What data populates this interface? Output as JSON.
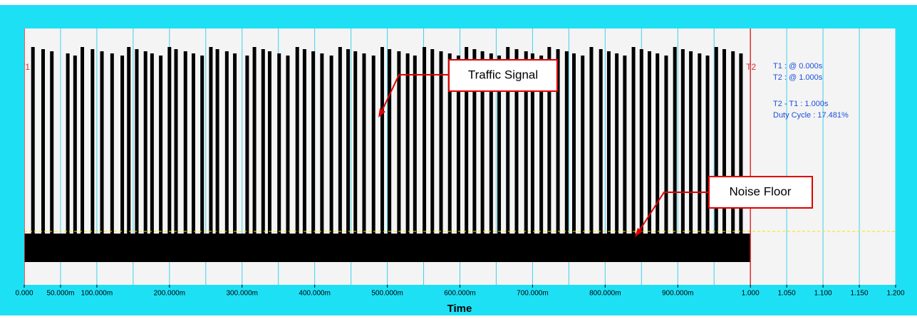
{
  "plot": {
    "xlim": [
      0,
      1.2
    ],
    "gridlines": [
      0,
      0.05,
      0.1,
      0.15,
      0.2,
      0.25,
      0.3,
      0.35,
      0.4,
      0.45,
      0.5,
      0.55,
      0.6,
      0.65,
      0.7,
      0.75,
      0.8,
      0.85,
      0.9,
      0.95,
      1.0,
      1.05,
      1.1,
      1.15,
      1.2
    ],
    "xticks": [
      {
        "value": 0,
        "label": "0.000"
      },
      {
        "value": 0.05,
        "label": "50.000m"
      },
      {
        "value": 0.1,
        "label": "100.000m"
      },
      {
        "value": 0.2,
        "label": "200.000m"
      },
      {
        "value": 0.3,
        "label": "300.000m"
      },
      {
        "value": 0.4,
        "label": "400.000m"
      },
      {
        "value": 0.5,
        "label": "500.000m"
      },
      {
        "value": 0.6,
        "label": "600.000m"
      },
      {
        "value": 0.7,
        "label": "700.000m"
      },
      {
        "value": 0.8,
        "label": "800.000m"
      },
      {
        "value": 0.9,
        "label": "900.000m"
      },
      {
        "value": 1.0,
        "label": "1.000"
      },
      {
        "value": 1.05,
        "label": "1.050"
      },
      {
        "value": 1.1,
        "label": "1.100"
      },
      {
        "value": 1.15,
        "label": "1.150"
      },
      {
        "value": 1.2,
        "label": "1.200"
      }
    ],
    "xlabel": "Time",
    "cursors": [
      {
        "label": "T1",
        "value": 0
      },
      {
        "label": "T2",
        "value": 1.0
      }
    ],
    "pulse_times": [
      0.012,
      0.026,
      0.038,
      0.06,
      0.07,
      0.08,
      0.094,
      0.107,
      0.121,
      0.135,
      0.144,
      0.155,
      0.167,
      0.176,
      0.188,
      0.2,
      0.209,
      0.222,
      0.233,
      0.245,
      0.257,
      0.266,
      0.279,
      0.29,
      0.307,
      0.317,
      0.329,
      0.338,
      0.351,
      0.363,
      0.376,
      0.386,
      0.398,
      0.41,
      0.423,
      0.435,
      0.446,
      0.456,
      0.468,
      0.481,
      0.493,
      0.503,
      0.516,
      0.528,
      0.538,
      0.551,
      0.562,
      0.574,
      0.586,
      0.598,
      0.609,
      0.62,
      0.631,
      0.643,
      0.654,
      0.666,
      0.678,
      0.691,
      0.7,
      0.712,
      0.723,
      0.735,
      0.747,
      0.757,
      0.769,
      0.781,
      0.794,
      0.805,
      0.816,
      0.827,
      0.839,
      0.85,
      0.861,
      0.872,
      0.884,
      0.896,
      0.907,
      0.918,
      0.93,
      0.941,
      0.953,
      0.964,
      0.976,
      0.987
    ]
  },
  "readout": [
    "T1 : @ 0.000s",
    "T2 : @ 1.000s",
    "T2 - T1 : 1.000s",
    "Duty Cycle : 17.481%"
  ],
  "annotations": [
    "Traffic Signal",
    "Noise Floor"
  ]
}
